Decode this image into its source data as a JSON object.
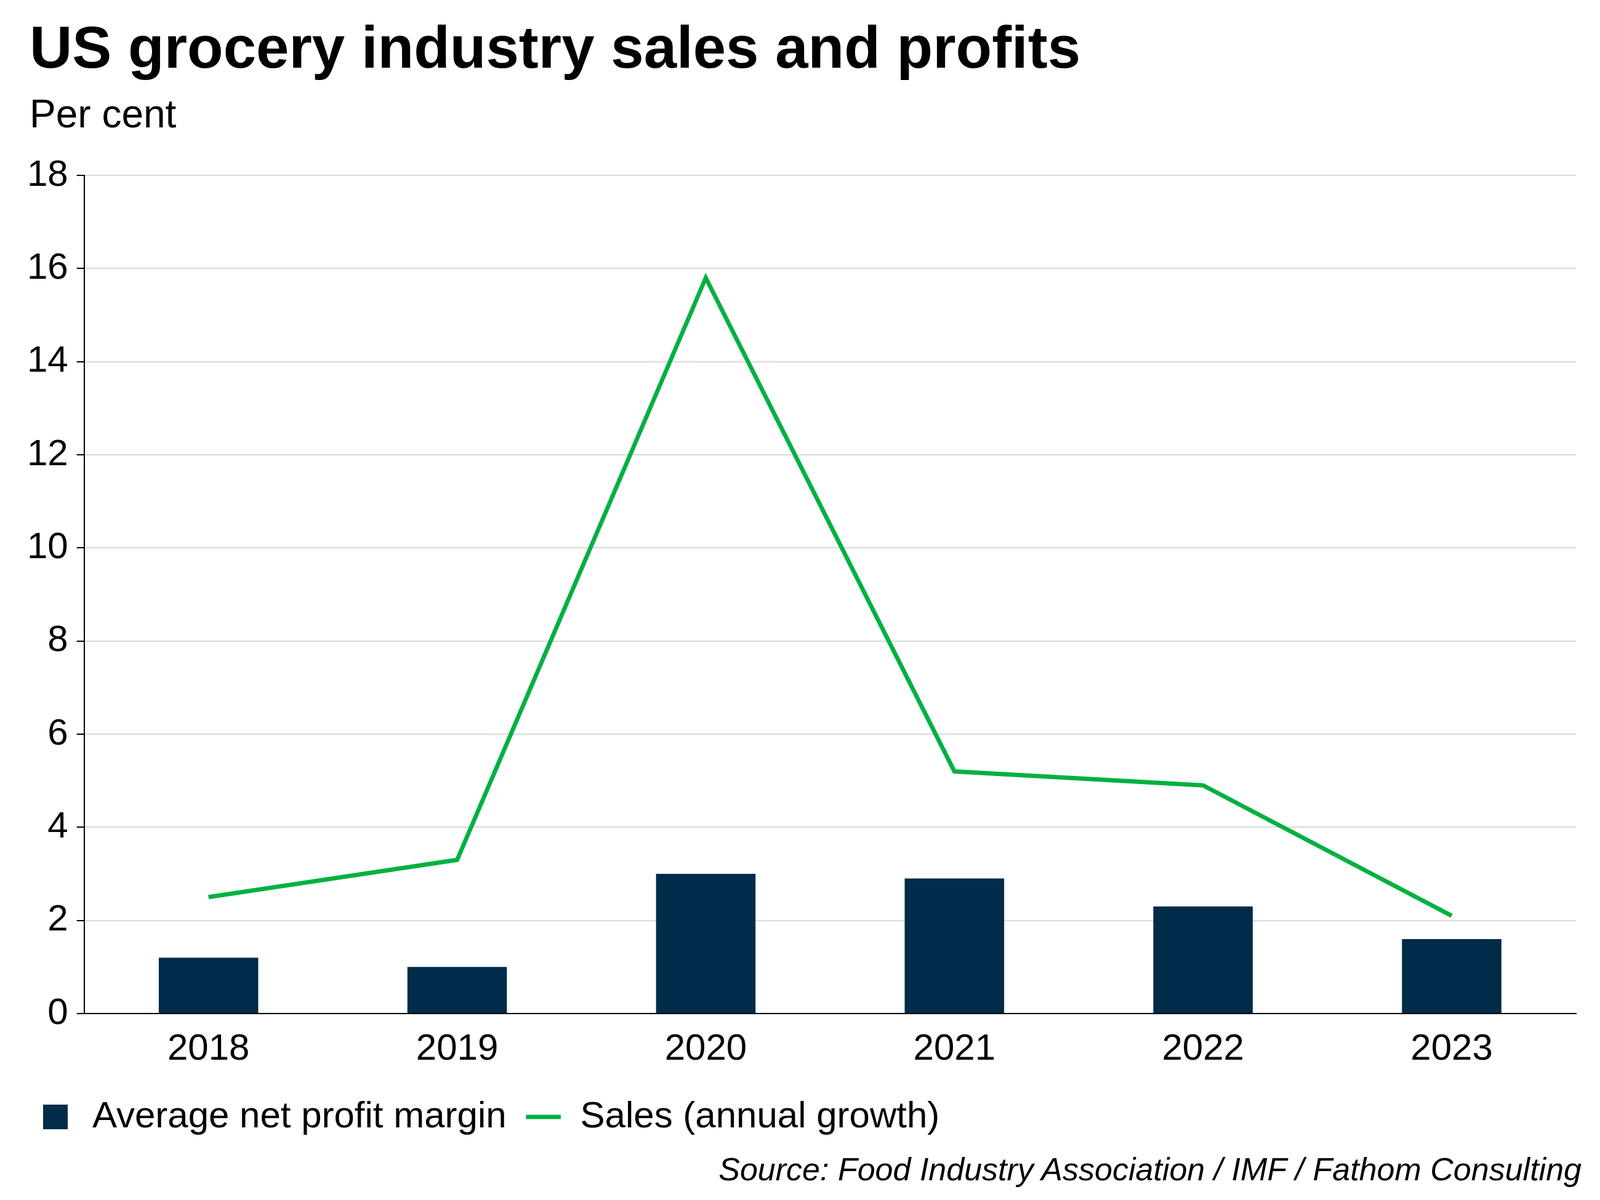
{
  "chart_data": {
    "type": "bar",
    "title": "US grocery industry sales and profits",
    "subtitle": "Per cent",
    "source": "Source: Food Industry Association / IMF / Fathom Consulting",
    "categories": [
      "2018",
      "2019",
      "2020",
      "2021",
      "2022",
      "2023"
    ],
    "series": [
      {
        "name": "Average net profit margin",
        "type": "bar",
        "color": "#002b49",
        "values": [
          1.2,
          1.0,
          3.0,
          2.9,
          2.3,
          1.6
        ]
      },
      {
        "name": "Sales (annual growth)",
        "type": "line",
        "color": "#00b140",
        "marker": "none",
        "values": [
          2.5,
          3.3,
          15.8,
          5.2,
          4.9,
          2.1
        ]
      }
    ],
    "ylim": [
      0,
      18
    ],
    "yticks": [
      0,
      2,
      4,
      6,
      8,
      10,
      12,
      14,
      16,
      18
    ],
    "grid": true,
    "legend": "bottom"
  }
}
